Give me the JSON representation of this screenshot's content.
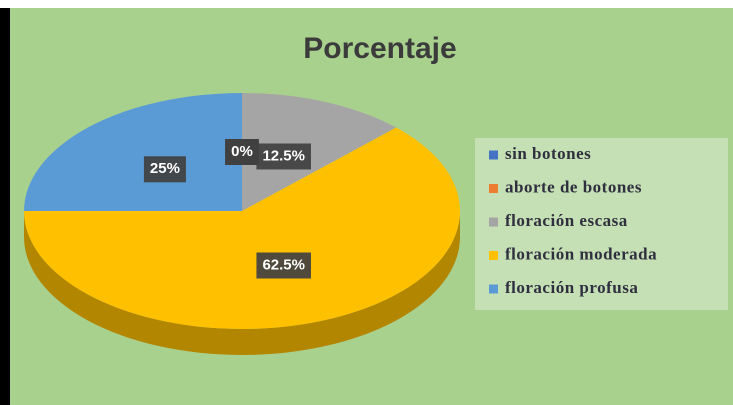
{
  "chart_data": {
    "type": "pie",
    "title": "Porcentaje",
    "categories": [
      "sin botones",
      "aborte de botones",
      "floración escasa",
      "floración moderada",
      "floración profusa"
    ],
    "values": [
      0,
      0,
      12.5,
      62.5,
      25
    ],
    "value_labels": [
      "0%",
      "0%",
      "12.5%",
      "62.5%",
      "25%"
    ],
    "colors": [
      "#4472c4",
      "#ed7d31",
      "#a5a5a5",
      "#ffc000",
      "#5b9bd5"
    ],
    "legend": "right"
  }
}
